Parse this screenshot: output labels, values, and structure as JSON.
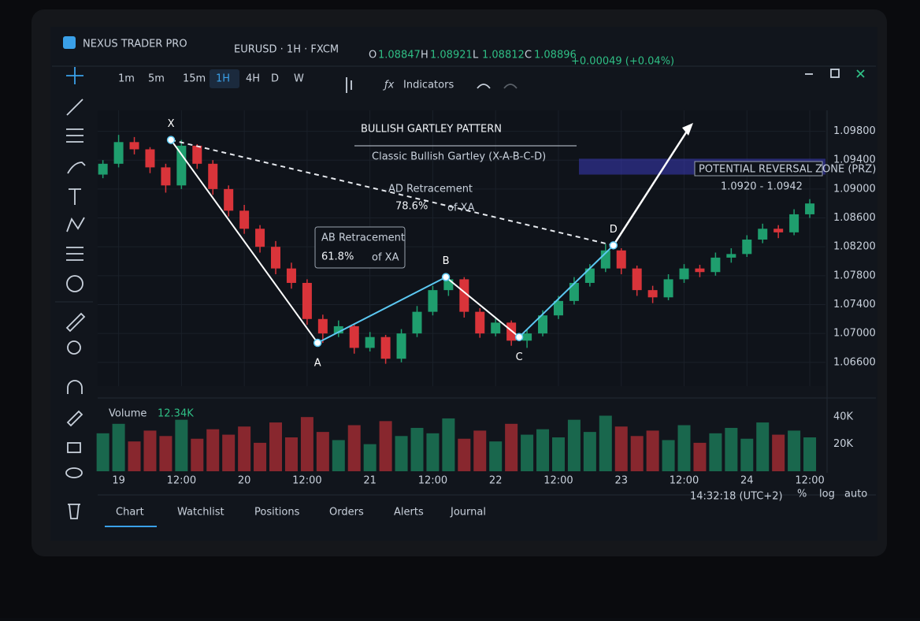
{
  "app": {
    "name": "NEXUS TRADER PRO",
    "symbol": "EURUSD · 1H · FXCM",
    "ohlc": [
      {
        "key": "O",
        "value": "1.08847"
      },
      {
        "key": "H",
        "value": "1.08921"
      },
      {
        "key": "L",
        "value": "1.08812"
      },
      {
        "key": "C",
        "value": "1.08896"
      }
    ],
    "change": "+0.00049 (+0.04%)",
    "timeframes": [
      "1m",
      "5m",
      "15m",
      "1H",
      "4H",
      "D",
      "W"
    ],
    "active_timeframe": 3,
    "indicators": "Indicators",
    "tabs": [
      "Chart",
      "Watchlist",
      "Positions",
      "Orders",
      "Alerts",
      "Journal"
    ],
    "active_tab": 0,
    "clock": "14:32:18 (UTC+2)",
    "scale_options": [
      "%",
      "log",
      "auto"
    ]
  },
  "chart_data": {
    "type": "candlestick",
    "title": "BULLISH GARTLEY PATTERN",
    "subtitle": "Classic Bullish Gartley (X-A-B-C-D)",
    "up_color": "#1f9e6e",
    "down_color": "#d9343a",
    "xlim": [
      -4,
      135
    ],
    "ylim": [
      1.0627,
      1.1009
    ],
    "yticks": [
      {
        "value": 1.098,
        "label": "1.09800"
      },
      {
        "value": 1.094,
        "label": "1.09400"
      },
      {
        "value": 1.09,
        "label": "1.09000"
      },
      {
        "value": 1.086,
        "label": "1.08600"
      },
      {
        "value": 1.082,
        "label": "1.08200"
      },
      {
        "value": 1.078,
        "label": "1.07800"
      },
      {
        "value": 1.074,
        "label": "1.07400"
      },
      {
        "value": 1.07,
        "label": "1.07000"
      },
      {
        "value": 1.066,
        "label": "1.06600"
      }
    ],
    "xticks": [
      {
        "value": 0,
        "label": "19"
      },
      {
        "value": 12,
        "label": "12:00"
      },
      {
        "value": 24,
        "label": "20"
      },
      {
        "value": 36,
        "label": "12:00"
      },
      {
        "value": 48,
        "label": "21"
      },
      {
        "value": 60,
        "label": "12:00"
      },
      {
        "value": 72,
        "label": "22"
      },
      {
        "value": 84,
        "label": "12:00"
      },
      {
        "value": 96,
        "label": "23"
      },
      {
        "value": 108,
        "label": "12:00"
      },
      {
        "value": 120,
        "label": "24"
      },
      {
        "value": 132,
        "label": "12:00"
      }
    ],
    "x": [
      -3,
      0,
      3,
      6,
      9,
      12,
      15,
      18,
      21,
      24,
      27,
      30,
      33,
      36,
      39,
      42,
      45,
      48,
      51,
      54,
      57,
      60,
      63,
      66,
      69,
      72,
      75,
      78,
      81,
      84,
      87,
      90,
      93,
      96,
      99,
      102,
      105,
      108,
      111,
      114,
      117,
      120,
      123,
      126,
      129,
      132
    ],
    "ohlc": [
      [
        1.092,
        1.094,
        1.0915,
        1.0935
      ],
      [
        1.0935,
        1.0975,
        1.093,
        1.0965
      ],
      [
        1.0965,
        1.0972,
        1.0948,
        1.0955
      ],
      [
        1.0955,
        1.0958,
        1.0922,
        1.093
      ],
      [
        1.093,
        1.0935,
        1.0895,
        1.0905
      ],
      [
        1.0905,
        1.0968,
        1.09,
        1.096
      ],
      [
        1.096,
        1.0962,
        1.0928,
        1.0935
      ],
      [
        1.0935,
        1.094,
        1.0892,
        1.09
      ],
      [
        1.09,
        1.0905,
        1.0862,
        1.087
      ],
      [
        1.087,
        1.0878,
        1.0838,
        1.0845
      ],
      [
        1.0845,
        1.085,
        1.0812,
        1.082
      ],
      [
        1.082,
        1.0828,
        1.0782,
        1.079
      ],
      [
        1.079,
        1.0798,
        1.0762,
        1.077
      ],
      [
        1.077,
        1.0775,
        1.0712,
        1.072
      ],
      [
        1.072,
        1.0726,
        1.0687,
        1.07
      ],
      [
        1.07,
        1.0718,
        1.0695,
        1.071
      ],
      [
        1.071,
        1.0714,
        1.0672,
        1.068
      ],
      [
        1.068,
        1.0702,
        1.0675,
        1.0695
      ],
      [
        1.0695,
        1.0698,
        1.0658,
        1.0665
      ],
      [
        1.0665,
        1.0706,
        1.066,
        1.07
      ],
      [
        1.07,
        1.0738,
        1.0695,
        1.073
      ],
      [
        1.073,
        1.0766,
        1.0725,
        1.076
      ],
      [
        1.076,
        1.0782,
        1.0752,
        1.0775
      ],
      [
        1.0775,
        1.0778,
        1.0722,
        1.073
      ],
      [
        1.073,
        1.0735,
        1.0694,
        1.07
      ],
      [
        1.07,
        1.0722,
        1.0696,
        1.0715
      ],
      [
        1.0715,
        1.0718,
        1.0683,
        1.069
      ],
      [
        1.069,
        1.0706,
        1.068,
        1.07
      ],
      [
        1.07,
        1.0732,
        1.0696,
        1.0725
      ],
      [
        1.0725,
        1.0752,
        1.072,
        1.0745
      ],
      [
        1.0745,
        1.0778,
        1.074,
        1.077
      ],
      [
        1.077,
        1.0796,
        1.0765,
        1.079
      ],
      [
        1.079,
        1.0824,
        1.0785,
        1.0815
      ],
      [
        1.0815,
        1.0818,
        1.0782,
        1.079
      ],
      [
        1.079,
        1.0794,
        1.0752,
        1.076
      ],
      [
        1.076,
        1.0766,
        1.0742,
        1.075
      ],
      [
        1.075,
        1.0782,
        1.0746,
        1.0775
      ],
      [
        1.0775,
        1.0796,
        1.077,
        1.079
      ],
      [
        1.079,
        1.0795,
        1.0778,
        1.0785
      ],
      [
        1.0785,
        1.0812,
        1.078,
        1.0805
      ],
      [
        1.0805,
        1.0818,
        1.0798,
        1.081
      ],
      [
        1.081,
        1.0836,
        1.0806,
        1.083
      ],
      [
        1.083,
        1.0852,
        1.0825,
        1.0845
      ],
      [
        1.0845,
        1.085,
        1.0832,
        1.084
      ],
      [
        1.084,
        1.0872,
        1.0836,
        1.0865
      ],
      [
        1.0865,
        1.0886,
        1.086,
        1.088
      ]
    ],
    "pattern": [
      {
        "label": "X",
        "x": 10,
        "price": 1.0968
      },
      {
        "label": "A",
        "x": 38,
        "price": 1.0687
      },
      {
        "label": "B",
        "x": 62.5,
        "price": 1.0778
      },
      {
        "label": "C",
        "x": 76.5,
        "price": 1.0695
      },
      {
        "label": "D",
        "x": 94.5,
        "price": 1.0822
      }
    ],
    "annotations": [
      {
        "title": "AB Retracement",
        "value": "61.8%",
        "unit": "of XA"
      },
      {
        "title": "AD Retracement",
        "value": "78.6%",
        "unit": "of XA"
      }
    ],
    "prz": {
      "title": "POTENTIAL REVERSAL ZONE (PRZ)",
      "label": "1.0920 - 1.0942",
      "low": 1.092,
      "high": 1.0942
    },
    "volume": {
      "label": "Volume",
      "last": "12.34K",
      "ylim": [
        0,
        50000
      ],
      "yticks": [
        {
          "value": 20000,
          "label": "20K"
        },
        {
          "value": 40000,
          "label": "40K"
        }
      ],
      "values": [
        28000,
        35000,
        22000,
        30000,
        26000,
        38000,
        24000,
        31000,
        27000,
        33000,
        21000,
        36000,
        25000,
        40000,
        29000,
        23000,
        34000,
        20000,
        37000,
        26000,
        32000,
        28000,
        39000,
        24000,
        30000,
        22000,
        35000,
        27000,
        31000,
        25000,
        38000,
        29000,
        41000,
        33000,
        26000,
        30000,
        23000,
        34000,
        21000,
        28000,
        32000,
        24000,
        36000,
        27000,
        30000,
        25000
      ]
    }
  }
}
